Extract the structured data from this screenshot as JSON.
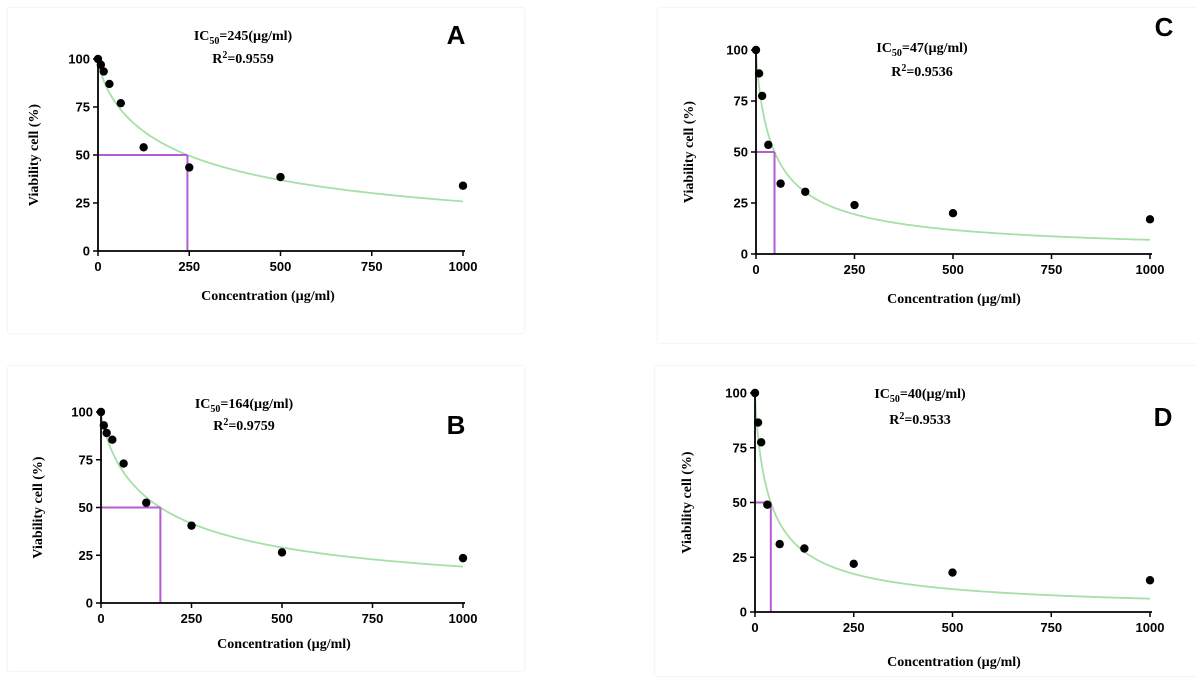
{
  "colors": {
    "fit": "#a6e0a6",
    "ic50_marker": "#b45bd6",
    "points": "#000000",
    "axis": "#000000"
  },
  "chart_data": [
    {
      "id": "A",
      "type": "scatter",
      "panel_label": "A",
      "annotation_line1": "IC50=245(µg/ml)",
      "annotation_line1_parts": {
        "pre": "IC",
        "sub": "50",
        "post": "=245(µg/ml)"
      },
      "annotation_line2": "R2=0.9559",
      "annotation_line2_parts": {
        "pre": "R",
        "sup": "2",
        "post": "=0.9559"
      },
      "xlabel": "Concentration (µg/ml)",
      "ylabel": "Viability cell (%)",
      "xlim": [
        0,
        1000
      ],
      "ylim": [
        0,
        100
      ],
      "xticks": [
        0,
        250,
        500,
        750,
        1000
      ],
      "yticks": [
        0,
        25,
        50,
        75,
        100
      ],
      "points": {
        "x": [
          0,
          7.8,
          15.6,
          31.25,
          62.5,
          125,
          250,
          500,
          1000
        ],
        "y": [
          100,
          97,
          93.5,
          87,
          77,
          54,
          43.5,
          38.5,
          34
        ]
      },
      "ic50": 245,
      "fit": {
        "ic50": 245,
        "hill": 0.75
      }
    },
    {
      "id": "B",
      "type": "scatter",
      "panel_label": "B",
      "annotation_line1": "IC50=164(µg/ml)",
      "annotation_line1_parts": {
        "pre": "IC",
        "sub": "50",
        "post": "=164(µg/ml)"
      },
      "annotation_line2": "R2=0.9759",
      "annotation_line2_parts": {
        "pre": "R",
        "sup": "2",
        "post": "=0.9759"
      },
      "xlabel": "Concentration (µg/ml)",
      "ylabel": "Viability cell (%)",
      "xlim": [
        0,
        1000
      ],
      "ylim": [
        0,
        100
      ],
      "xticks": [
        0,
        250,
        500,
        750,
        1000
      ],
      "yticks": [
        0,
        25,
        50,
        75,
        100
      ],
      "points": {
        "x": [
          0,
          7.8,
          15.6,
          31.25,
          62.5,
          125,
          250,
          500,
          1000
        ],
        "y": [
          100,
          93,
          89,
          85.5,
          73,
          52.5,
          40.5,
          26.5,
          23.5
        ]
      },
      "ic50": 164,
      "fit": {
        "ic50": 164,
        "hill": 0.8
      }
    },
    {
      "id": "C",
      "type": "scatter",
      "panel_label": "C",
      "annotation_line1": "IC50=47(µg/ml)",
      "annotation_line1_parts": {
        "pre": "IC",
        "sub": "50",
        "post": "=47(µg/ml)"
      },
      "annotation_line2": "R2=0.9536",
      "annotation_line2_parts": {
        "pre": "R",
        "sup": "2",
        "post": "=0.9536"
      },
      "xlabel": "Concentration (µg/ml)",
      "ylabel": "Viability cell (%)",
      "xlim": [
        0,
        1000
      ],
      "ylim": [
        0,
        100
      ],
      "xticks": [
        0,
        250,
        500,
        750,
        1000
      ],
      "yticks": [
        0,
        25,
        50,
        75,
        100
      ],
      "points": {
        "x": [
          0,
          7.8,
          15.6,
          31.25,
          62.5,
          125,
          250,
          500,
          1000
        ],
        "y": [
          100,
          88.5,
          77.5,
          53.5,
          34.5,
          30.5,
          24,
          20,
          17
        ]
      },
      "ic50": 47,
      "fit": {
        "ic50": 47,
        "hill": 0.85
      }
    },
    {
      "id": "D",
      "type": "scatter",
      "panel_label": "D",
      "annotation_line1": "IC50=40(µg/ml)",
      "annotation_line1_parts": {
        "pre": "IC",
        "sub": "50",
        "post": "=40(µg/ml)"
      },
      "annotation_line2": "R2=0.9533",
      "annotation_line2_parts": {
        "pre": "R",
        "sup": "2",
        "post": "=0.9533"
      },
      "xlabel": "Concentration (µg/ml)",
      "ylabel": "Viability cell (%)",
      "xlim": [
        0,
        1000
      ],
      "ylim": [
        0,
        100
      ],
      "xticks": [
        0,
        250,
        500,
        750,
        1000
      ],
      "yticks": [
        0,
        25,
        50,
        75,
        100
      ],
      "points": {
        "x": [
          0,
          7.8,
          15.6,
          31.25,
          62.5,
          125,
          250,
          500,
          1000
        ],
        "y": [
          100,
          86.5,
          77.5,
          49,
          31,
          29,
          22,
          18,
          14.5
        ]
      },
      "ic50": 40,
      "fit": {
        "ic50": 40,
        "hill": 0.85
      }
    }
  ]
}
